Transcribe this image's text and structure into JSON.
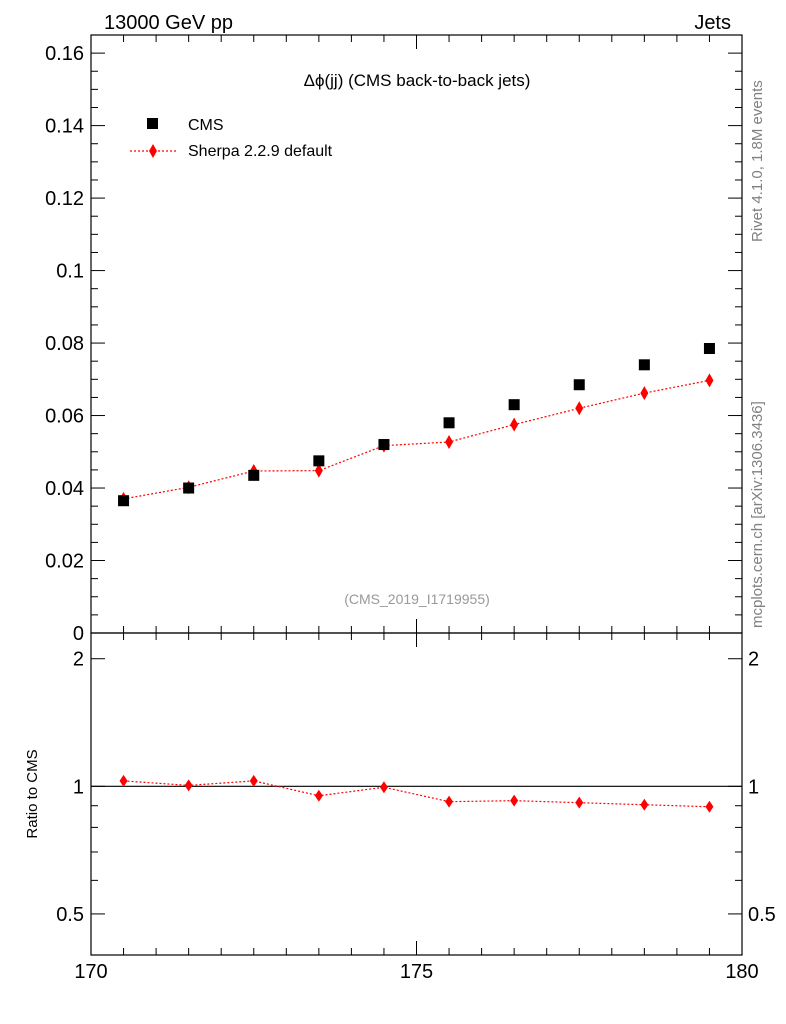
{
  "header": {
    "left": "13000 GeV pp",
    "right": "Jets"
  },
  "side_labels": {
    "rivet": "Rivet 4.1.0,  1.8M events",
    "site": "mcplots.cern.ch [arXiv:1306.3436]"
  },
  "chart_data": {
    "type": "scatter",
    "title": "Δϕ(jj) (CMS back-to-back jets)",
    "title_symbol": "Δϕ",
    "title_rest": "(jj) (CMS back-to-back jets)",
    "analysis_label": "(CMS_2019_I1719955)",
    "x": [
      170.5,
      171.5,
      172.5,
      173.5,
      174.5,
      175.5,
      176.5,
      177.5,
      178.5,
      179.5
    ],
    "xlim": [
      170,
      180
    ],
    "x_ticks": [
      "170",
      "175",
      "180"
    ],
    "x_tick_values": [
      170,
      175,
      180
    ],
    "ylim": [
      0,
      0.165
    ],
    "y_ticks": [
      "0",
      "0.02",
      "0.04",
      "0.06",
      "0.08",
      "0.1",
      "0.12",
      "0.14",
      "0.16"
    ],
    "y_tick_values": [
      0,
      0.02,
      0.04,
      0.06,
      0.08,
      0.1,
      0.12,
      0.14,
      0.16
    ],
    "series": [
      {
        "name": "CMS",
        "marker": "square",
        "color": "#000000",
        "values": [
          0.0365,
          0.04,
          0.0435,
          0.0475,
          0.052,
          0.058,
          0.063,
          0.0685,
          0.074,
          0.0785
        ]
      },
      {
        "name": "Sherpa 2.2.9 default",
        "marker": "diamond",
        "line": "dotted",
        "color": "#ff0000",
        "values": [
          0.037,
          0.0402,
          0.0447,
          0.0448,
          0.0517,
          0.0527,
          0.0575,
          0.062,
          0.0662,
          0.0697
        ]
      }
    ],
    "ratio": {
      "ylabel": "Ratio to CMS",
      "ylim": [
        0.4,
        2.3
      ],
      "y_ticks": [
        "0.5",
        "1",
        "2"
      ],
      "y_tick_values": [
        0.5,
        1,
        2
      ],
      "reference": 1.0,
      "values": [
        1.03,
        1.005,
        1.03,
        0.95,
        0.995,
        0.92,
        0.925,
        0.915,
        0.905,
        0.895
      ]
    }
  }
}
